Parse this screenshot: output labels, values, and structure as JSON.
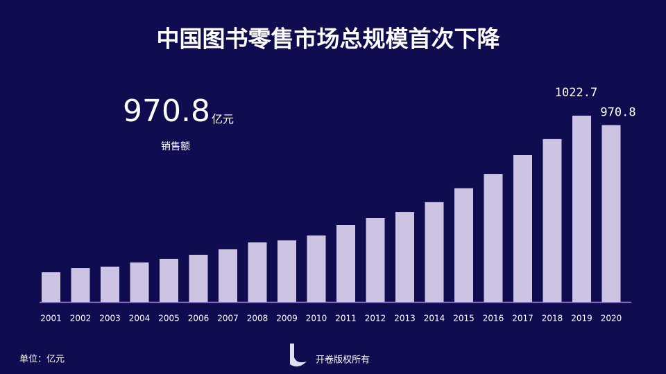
{
  "chart_data": {
    "type": "bar",
    "title": "中国图书零售市场总规模首次下降",
    "categories": [
      "2001",
      "2002",
      "2003",
      "2004",
      "2005",
      "2006",
      "2007",
      "2008",
      "2009",
      "2010",
      "2011",
      "2012",
      "2013",
      "2014",
      "2015",
      "2016",
      "2017",
      "2018",
      "2019",
      "2020"
    ],
    "values": [
      163,
      186,
      194,
      217,
      236,
      259,
      289,
      327,
      338,
      365,
      422,
      460,
      494,
      548,
      624,
      703,
      806,
      894,
      1022.7,
      970.8
    ],
    "value_labels": [
      null,
      null,
      null,
      null,
      null,
      null,
      null,
      null,
      null,
      null,
      null,
      null,
      null,
      null,
      null,
      null,
      null,
      null,
      "1022.7",
      "970.8"
    ],
    "color": "#cdc4e4",
    "highlight": {
      "value": "970.8",
      "unit": "亿元",
      "label": "销售额"
    },
    "unit_note": "单位：亿元",
    "source": "开卷版权所有"
  }
}
